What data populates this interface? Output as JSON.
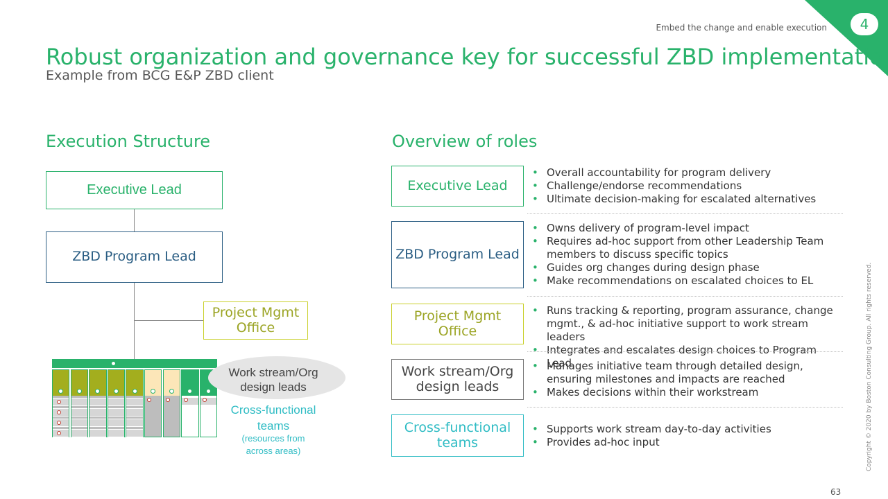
{
  "header": {
    "section_number": "4",
    "tracker": "Embed the change and enable execution",
    "title": "Robust organization and governance key for successful ZBD implementation",
    "subtitle": "Example from BCG E&P ZBD client"
  },
  "execution_structure": {
    "heading": "Execution Structure",
    "executive_lead": "Executive Lead",
    "program_lead": "ZBD Program Lead",
    "pmo": "Project Mgmt Office",
    "workstream_leads": "Work stream/Org design leads",
    "cross_functional": "Cross-functional teams",
    "cross_functional_note": "(resources from across areas)"
  },
  "roles": {
    "heading": "Overview of roles",
    "items": [
      {
        "name": "Executive Lead",
        "bullets": [
          "Overall accountability for program delivery",
          "Challenge/endorse recommendations",
          "Ultimate decision-making for escalated alternatives"
        ]
      },
      {
        "name": "ZBD Program Lead",
        "bullets": [
          "Owns delivery of program-level impact",
          "Requires ad-hoc support from other Leadership Team members to discuss specific topics",
          "Guides org changes during design phase",
          "Make recommendations on escalated choices to EL"
        ]
      },
      {
        "name": "Project Mgmt Office",
        "bullets": [
          "Runs tracking & reporting, program assurance, change mgmt., & ad-hoc initiative support to work stream leaders",
          "Integrates and escalates design choices to Program Lead"
        ]
      },
      {
        "name": "Work stream/Org design leads",
        "bullets": [
          "Manages initiative team through detailed design, ensuring milestones and impacts are reached",
          "Makes decisions within their workstream"
        ]
      },
      {
        "name": "Cross-functional teams",
        "bullets": [
          "Supports work stream day-to-day activities",
          "Provides ad-hoc input"
        ]
      }
    ]
  },
  "footer": {
    "copyright": "Copyright © 2020 by Boston Consulting Group. All rights reserved.",
    "page_number": "63"
  },
  "colors": {
    "accent_green": "#29b26b",
    "navy": "#2a5d83",
    "olive": "#c9d02a",
    "teal": "#2fbcc4",
    "column_olive": "#a3ae1e",
    "column_beige": "#fce6b8",
    "column_grey": "#bdbdbd"
  }
}
